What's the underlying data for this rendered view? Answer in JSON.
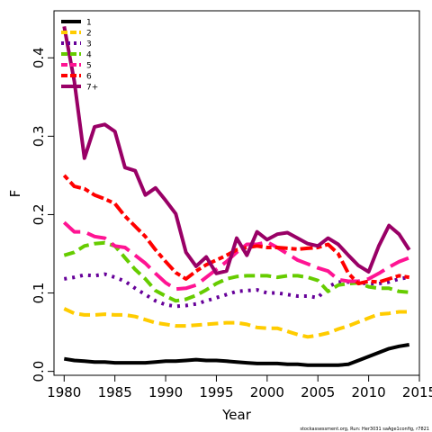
{
  "chart_data": {
    "type": "line",
    "xlabel": "Year",
    "ylabel": "F",
    "xlim": [
      1979,
      2015
    ],
    "ylim": [
      -0.005,
      0.46
    ],
    "x_ticks": [
      1980,
      1985,
      1990,
      1995,
      2000,
      2005,
      2010,
      2015
    ],
    "y_ticks": [
      0.0,
      0.1,
      0.2,
      0.3,
      0.4
    ],
    "y_tick_labels": [
      "0.0",
      "0.1",
      "0.2",
      "0.3",
      "0.4"
    ],
    "grid": false,
    "legend_position": "top-left",
    "footnote": "stockassessment.org, Run: Her3031 saAge1config, r7821",
    "x": [
      1980,
      1981,
      1982,
      1983,
      1984,
      1985,
      1986,
      1987,
      1988,
      1989,
      1990,
      1991,
      1992,
      1993,
      1994,
      1995,
      1996,
      1997,
      1998,
      1999,
      2000,
      2001,
      2002,
      2003,
      2004,
      2005,
      2006,
      2007,
      2008,
      2009,
      2010,
      2011,
      2012,
      2013,
      2014
    ],
    "series": [
      {
        "name": "1",
        "color": "#000000",
        "dash": "solid",
        "values": [
          0.016,
          0.014,
          0.013,
          0.012,
          0.012,
          0.011,
          0.011,
          0.011,
          0.011,
          0.012,
          0.013,
          0.013,
          0.014,
          0.015,
          0.014,
          0.014,
          0.013,
          0.012,
          0.011,
          0.01,
          0.01,
          0.01,
          0.009,
          0.009,
          0.008,
          0.008,
          0.008,
          0.008,
          0.009,
          0.014,
          0.019,
          0.024,
          0.029,
          0.032,
          0.034
        ]
      },
      {
        "name": "2",
        "color": "#FFCC00",
        "dash": "dashed",
        "values": [
          0.08,
          0.074,
          0.072,
          0.072,
          0.073,
          0.072,
          0.072,
          0.07,
          0.066,
          0.062,
          0.06,
          0.058,
          0.058,
          0.059,
          0.06,
          0.061,
          0.062,
          0.062,
          0.06,
          0.056,
          0.055,
          0.055,
          0.051,
          0.047,
          0.044,
          0.046,
          0.049,
          0.054,
          0.058,
          0.063,
          0.068,
          0.073,
          0.074,
          0.076,
          0.076
        ]
      },
      {
        "name": "3",
        "color": "#660099",
        "dash": "dotted",
        "values": [
          0.118,
          0.12,
          0.123,
          0.122,
          0.124,
          0.12,
          0.115,
          0.106,
          0.098,
          0.09,
          0.085,
          0.083,
          0.084,
          0.086,
          0.09,
          0.094,
          0.098,
          0.102,
          0.103,
          0.104,
          0.1,
          0.1,
          0.098,
          0.096,
          0.096,
          0.094,
          0.108,
          0.114,
          0.114,
          0.113,
          0.112,
          0.112,
          0.114,
          0.118,
          0.12
        ]
      },
      {
        "name": "4",
        "color": "#66CC00",
        "dash": "dashed",
        "values": [
          0.148,
          0.152,
          0.16,
          0.163,
          0.164,
          0.16,
          0.145,
          0.13,
          0.118,
          0.103,
          0.096,
          0.09,
          0.092,
          0.097,
          0.104,
          0.112,
          0.118,
          0.121,
          0.122,
          0.122,
          0.122,
          0.12,
          0.122,
          0.122,
          0.12,
          0.116,
          0.102,
          0.11,
          0.112,
          0.113,
          0.108,
          0.106,
          0.106,
          0.102,
          0.101
        ]
      },
      {
        "name": "5",
        "color": "#FF1493",
        "dash": "longdash",
        "values": [
          0.19,
          0.178,
          0.178,
          0.172,
          0.17,
          0.16,
          0.158,
          0.148,
          0.138,
          0.125,
          0.113,
          0.105,
          0.106,
          0.11,
          0.12,
          0.13,
          0.14,
          0.152,
          0.162,
          0.162,
          0.165,
          0.158,
          0.15,
          0.142,
          0.137,
          0.132,
          0.128,
          0.117,
          0.115,
          0.115,
          0.118,
          0.125,
          0.133,
          0.14,
          0.145
        ]
      },
      {
        "name": "6",
        "color": "#FF0000",
        "dash": "twodash",
        "values": [
          0.25,
          0.236,
          0.233,
          0.225,
          0.22,
          0.214,
          0.198,
          0.185,
          0.172,
          0.155,
          0.14,
          0.126,
          0.118,
          0.128,
          0.136,
          0.142,
          0.148,
          0.155,
          0.158,
          0.16,
          0.158,
          0.158,
          0.157,
          0.156,
          0.157,
          0.158,
          0.162,
          0.15,
          0.125,
          0.112,
          0.115,
          0.114,
          0.118,
          0.122,
          0.12
        ]
      },
      {
        "name": "7+",
        "color": "#990066",
        "dash": "solid",
        "values": [
          0.44,
          0.37,
          0.272,
          0.312,
          0.315,
          0.306,
          0.26,
          0.256,
          0.225,
          0.234,
          0.218,
          0.201,
          0.152,
          0.134,
          0.146,
          0.125,
          0.128,
          0.17,
          0.148,
          0.178,
          0.168,
          0.175,
          0.177,
          0.17,
          0.163,
          0.16,
          0.17,
          0.162,
          0.148,
          0.135,
          0.127,
          0.16,
          0.186,
          0.175,
          0.155
        ]
      }
    ]
  }
}
